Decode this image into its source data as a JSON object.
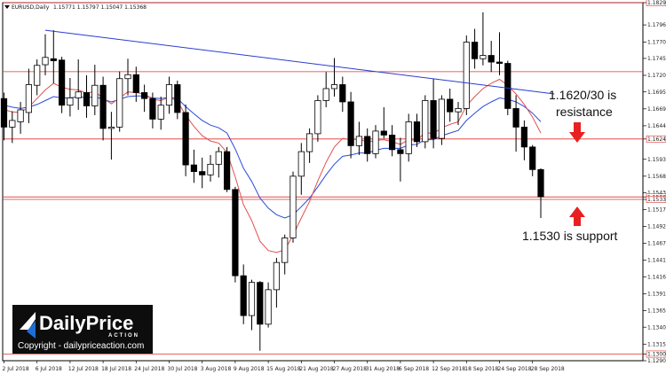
{
  "header": {
    "symbol": "EURUSD,Daily",
    "ohlc": "1.15771 1.15797 1.15047 1.15368"
  },
  "annotations": {
    "resistance": [
      "1.1620/30 is",
      "resistance"
    ],
    "support": "1.1530 is support"
  },
  "logo": {
    "brand": "DailyPrice",
    "tag": "ACTION",
    "copyright": "Copyright - dailypriceaction.com"
  },
  "colors": {
    "bull": "#ffffff",
    "bear": "#000000",
    "ema_fast": "#e05050",
    "ema_slow": "#2a4bd8",
    "trendline": "#2a3bd0",
    "level_line": "#e03030",
    "arrow": "#e82020",
    "logo_bg": "#0d0d0d",
    "logo_accent": "#1c6fd6"
  },
  "chart_data": {
    "type": "candlestick",
    "title": "EURUSD,Daily",
    "ylim": [
      1.129,
      1.18295
    ],
    "y_ticks": [
      "1.18295",
      "1.17960",
      "1.17700",
      "1.17455",
      "1.17200",
      "1.16950",
      "1.16695",
      "1.16440",
      "1.16241",
      "1.15935",
      "1.15680",
      "1.15430",
      "1.15368",
      "1.15330",
      "1.15175",
      "1.14925",
      "1.14670",
      "1.14415",
      "1.14165",
      "1.13910",
      "1.13655",
      "1.13405",
      "1.13150",
      "1.13000",
      "1.12900"
    ],
    "y_tick_values": [
      1.18295,
      1.1796,
      1.177,
      1.17455,
      1.172,
      1.1695,
      1.16695,
      1.1644,
      1.16241,
      1.15935,
      1.1568,
      1.1543,
      1.15368,
      1.1533,
      1.15175,
      1.14925,
      1.1467,
      1.14415,
      1.14165,
      1.1391,
      1.13655,
      1.13405,
      1.1315,
      1.13,
      1.129
    ],
    "highlighted_levels": [
      "1.18295",
      "1.17255",
      "1.16241",
      "1.15368",
      "1.15330",
      "1.13000"
    ],
    "x_ticks": [
      {
        "label": "2 Jul 2018",
        "index": 0
      },
      {
        "label": "6 Jul 2018",
        "index": 4
      },
      {
        "label": "12 Jul 2018",
        "index": 8
      },
      {
        "label": "18 Jul 2018",
        "index": 12
      },
      {
        "label": "24 Jul 2018",
        "index": 16
      },
      {
        "label": "30 Jul 2018",
        "index": 20
      },
      {
        "label": "3 Aug 2018",
        "index": 24
      },
      {
        "label": "9 Aug 2018",
        "index": 28
      },
      {
        "label": "15 Aug 2018",
        "index": 32
      },
      {
        "label": "21 Aug 2018",
        "index": 36
      },
      {
        "label": "27 Aug 2018",
        "index": 40
      },
      {
        "label": "31 Aug 2018",
        "index": 44
      },
      {
        "label": "6 Sep 2018",
        "index": 48
      },
      {
        "label": "12 Sep 2018",
        "index": 52
      },
      {
        "label": "18 Sep 2018",
        "index": 56
      },
      {
        "label": "24 Sep 2018",
        "index": 60
      },
      {
        "label": "28 Sep 2018",
        "index": 64
      }
    ],
    "candles": [
      {
        "o": 1.1685,
        "h": 1.1694,
        "l": 1.1622,
        "c": 1.1642
      },
      {
        "o": 1.1642,
        "h": 1.1666,
        "l": 1.1618,
        "c": 1.1652
      },
      {
        "o": 1.165,
        "h": 1.168,
        "l": 1.1632,
        "c": 1.1668
      },
      {
        "o": 1.1664,
        "h": 1.173,
        "l": 1.1648,
        "c": 1.1706
      },
      {
        "o": 1.1705,
        "h": 1.1744,
        "l": 1.169,
        "c": 1.1735
      },
      {
        "o": 1.1736,
        "h": 1.1782,
        "l": 1.172,
        "c": 1.1747
      },
      {
        "o": 1.1745,
        "h": 1.1788,
        "l": 1.1708,
        "c": 1.1742
      },
      {
        "o": 1.1743,
        "h": 1.1748,
        "l": 1.1663,
        "c": 1.1675
      },
      {
        "o": 1.1675,
        "h": 1.1716,
        "l": 1.1658,
        "c": 1.1686
      },
      {
        "o": 1.1686,
        "h": 1.1744,
        "l": 1.1668,
        "c": 1.1695
      },
      {
        "o": 1.1694,
        "h": 1.172,
        "l": 1.1656,
        "c": 1.1674
      },
      {
        "o": 1.1674,
        "h": 1.1736,
        "l": 1.166,
        "c": 1.1705
      },
      {
        "o": 1.1705,
        "h": 1.1718,
        "l": 1.1622,
        "c": 1.164
      },
      {
        "o": 1.164,
        "h": 1.1665,
        "l": 1.1593,
        "c": 1.1642
      },
      {
        "o": 1.1642,
        "h": 1.1726,
        "l": 1.1635,
        "c": 1.1715
      },
      {
        "o": 1.1715,
        "h": 1.1745,
        "l": 1.169,
        "c": 1.1721
      },
      {
        "o": 1.1721,
        "h": 1.1733,
        "l": 1.168,
        "c": 1.1694
      },
      {
        "o": 1.1694,
        "h": 1.1706,
        "l": 1.1665,
        "c": 1.1685
      },
      {
        "o": 1.1685,
        "h": 1.1694,
        "l": 1.164,
        "c": 1.1654
      },
      {
        "o": 1.1654,
        "h": 1.1688,
        "l": 1.1638,
        "c": 1.1675
      },
      {
        "o": 1.1675,
        "h": 1.1718,
        "l": 1.1662,
        "c": 1.1706
      },
      {
        "o": 1.1706,
        "h": 1.1712,
        "l": 1.1654,
        "c": 1.1664
      },
      {
        "o": 1.1664,
        "h": 1.1676,
        "l": 1.1568,
        "c": 1.1585
      },
      {
        "o": 1.1585,
        "h": 1.1608,
        "l": 1.1558,
        "c": 1.1575
      },
      {
        "o": 1.1575,
        "h": 1.1596,
        "l": 1.155,
        "c": 1.157
      },
      {
        "o": 1.157,
        "h": 1.16,
        "l": 1.156,
        "c": 1.1586
      },
      {
        "o": 1.1586,
        "h": 1.1612,
        "l": 1.1566,
        "c": 1.1605
      },
      {
        "o": 1.1605,
        "h": 1.1612,
        "l": 1.1544,
        "c": 1.1548
      },
      {
        "o": 1.1548,
        "h": 1.1552,
        "l": 1.1408,
        "c": 1.1418
      },
      {
        "o": 1.1418,
        "h": 1.1435,
        "l": 1.1345,
        "c": 1.1358
      },
      {
        "o": 1.1358,
        "h": 1.1412,
        "l": 1.1336,
        "c": 1.1408
      },
      {
        "o": 1.1408,
        "h": 1.141,
        "l": 1.1305,
        "c": 1.1345
      },
      {
        "o": 1.1345,
        "h": 1.1408,
        "l": 1.134,
        "c": 1.1397
      },
      {
        "o": 1.1397,
        "h": 1.1445,
        "l": 1.137,
        "c": 1.1438
      },
      {
        "o": 1.1438,
        "h": 1.148,
        "l": 1.142,
        "c": 1.1475
      },
      {
        "o": 1.1475,
        "h": 1.1575,
        "l": 1.1468,
        "c": 1.1568
      },
      {
        "o": 1.1568,
        "h": 1.1618,
        "l": 1.154,
        "c": 1.1605
      },
      {
        "o": 1.1605,
        "h": 1.164,
        "l": 1.1588,
        "c": 1.1632
      },
      {
        "o": 1.1632,
        "h": 1.169,
        "l": 1.162,
        "c": 1.1682
      },
      {
        "o": 1.1682,
        "h": 1.1725,
        "l": 1.1672,
        "c": 1.17
      },
      {
        "o": 1.17,
        "h": 1.1746,
        "l": 1.1688,
        "c": 1.1706
      },
      {
        "o": 1.1706,
        "h": 1.1718,
        "l": 1.1665,
        "c": 1.168
      },
      {
        "o": 1.168,
        "h": 1.1695,
        "l": 1.1595,
        "c": 1.1614
      },
      {
        "o": 1.1614,
        "h": 1.165,
        "l": 1.16,
        "c": 1.1628
      },
      {
        "o": 1.1628,
        "h": 1.164,
        "l": 1.159,
        "c": 1.1602
      },
      {
        "o": 1.1602,
        "h": 1.1645,
        "l": 1.1595,
        "c": 1.1636
      },
      {
        "o": 1.1636,
        "h": 1.1672,
        "l": 1.1625,
        "c": 1.163
      },
      {
        "o": 1.163,
        "h": 1.1645,
        "l": 1.1598,
        "c": 1.1608
      },
      {
        "o": 1.1608,
        "h": 1.1626,
        "l": 1.156,
        "c": 1.1602
      },
      {
        "o": 1.1602,
        "h": 1.1662,
        "l": 1.159,
        "c": 1.165
      },
      {
        "o": 1.165,
        "h": 1.1662,
        "l": 1.1612,
        "c": 1.162
      },
      {
        "o": 1.162,
        "h": 1.169,
        "l": 1.161,
        "c": 1.1682
      },
      {
        "o": 1.1682,
        "h": 1.1715,
        "l": 1.161,
        "c": 1.1625
      },
      {
        "o": 1.1625,
        "h": 1.169,
        "l": 1.1615,
        "c": 1.1684
      },
      {
        "o": 1.1684,
        "h": 1.17,
        "l": 1.165,
        "c": 1.1665
      },
      {
        "o": 1.1665,
        "h": 1.168,
        "l": 1.1645,
        "c": 1.167
      },
      {
        "o": 1.167,
        "h": 1.178,
        "l": 1.166,
        "c": 1.177
      },
      {
        "o": 1.177,
        "h": 1.179,
        "l": 1.173,
        "c": 1.1745
      },
      {
        "o": 1.1745,
        "h": 1.1815,
        "l": 1.1735,
        "c": 1.175
      },
      {
        "o": 1.175,
        "h": 1.1772,
        "l": 1.1725,
        "c": 1.174
      },
      {
        "o": 1.174,
        "h": 1.1785,
        "l": 1.172,
        "c": 1.1738
      },
      {
        "o": 1.1738,
        "h": 1.1742,
        "l": 1.166,
        "c": 1.167
      },
      {
        "o": 1.167,
        "h": 1.169,
        "l": 1.1605,
        "c": 1.1642
      },
      {
        "o": 1.1642,
        "h": 1.1652,
        "l": 1.1592,
        "c": 1.1612
      },
      {
        "o": 1.1612,
        "h": 1.1615,
        "l": 1.1568,
        "c": 1.1578
      },
      {
        "o": 1.1578,
        "h": 1.158,
        "l": 1.1505,
        "c": 1.1537
      }
    ],
    "ema_fast": [
      1.1668,
      1.1665,
      1.1664,
      1.1672,
      1.1685,
      1.1698,
      1.1708,
      1.1702,
      1.1699,
      1.1698,
      1.1693,
      1.1696,
      1.1685,
      1.1677,
      1.1686,
      1.1695,
      1.1694,
      1.1692,
      1.1684,
      1.1682,
      1.1687,
      1.1681,
      1.166,
      1.1643,
      1.1629,
      1.1621,
      1.1618,
      1.1604,
      1.1567,
      1.1525,
      1.1501,
      1.147,
      1.1456,
      1.1453,
      1.1457,
      1.1479,
      1.1505,
      1.153,
      1.1561,
      1.1589,
      1.1612,
      1.1625,
      1.1623,
      1.1624,
      1.1619,
      1.1622,
      1.1623,
      1.162,
      1.1616,
      1.1623,
      1.1622,
      1.1634,
      1.1632,
      1.1641,
      1.1646,
      1.165,
      1.1674,
      1.1688,
      1.17,
      1.1708,
      1.1714,
      1.1705,
      1.1692,
      1.1676,
      1.1657,
      1.1633
    ],
    "ema_slow": [
      1.1675,
      1.1672,
      1.167,
      1.1672,
      1.1676,
      1.1682,
      1.1688,
      1.1686,
      1.1686,
      1.1688,
      1.1686,
      1.1688,
      1.1684,
      1.168,
      1.1684,
      1.1688,
      1.1689,
      1.1689,
      1.1686,
      1.1685,
      1.1687,
      1.1685,
      1.1673,
      1.1662,
      1.1652,
      1.1645,
      1.1641,
      1.1633,
      1.1609,
      1.158,
      1.156,
      1.1535,
      1.152,
      1.151,
      1.1505,
      1.151,
      1.1522,
      1.1535,
      1.1552,
      1.157,
      1.1586,
      1.1598,
      1.16,
      1.1603,
      1.1603,
      1.1607,
      1.161,
      1.161,
      1.161,
      1.1615,
      1.1616,
      1.1623,
      1.1623,
      1.1629,
      1.1633,
      1.1637,
      1.1652,
      1.1663,
      1.1673,
      1.168,
      1.1686,
      1.1684,
      1.168,
      1.1673,
      1.1663,
      1.165
    ],
    "trendline": [
      {
        "index": 5,
        "price": 1.1788
      },
      {
        "index": 66,
        "price": 1.1692
      }
    ]
  }
}
